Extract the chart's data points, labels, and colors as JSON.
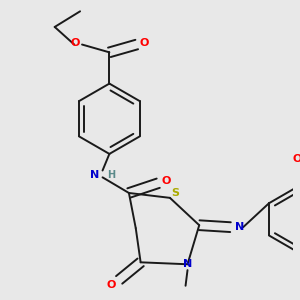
{
  "background_color": "#e8e8e8",
  "bond_color": "#1a1a1a",
  "atom_colors": {
    "O": "#ff0000",
    "N": "#0000cc",
    "S": "#aaaa00",
    "H": "#5a8a8a",
    "C": "#1a1a1a"
  },
  "figsize": [
    3.0,
    3.0
  ],
  "dpi": 100
}
